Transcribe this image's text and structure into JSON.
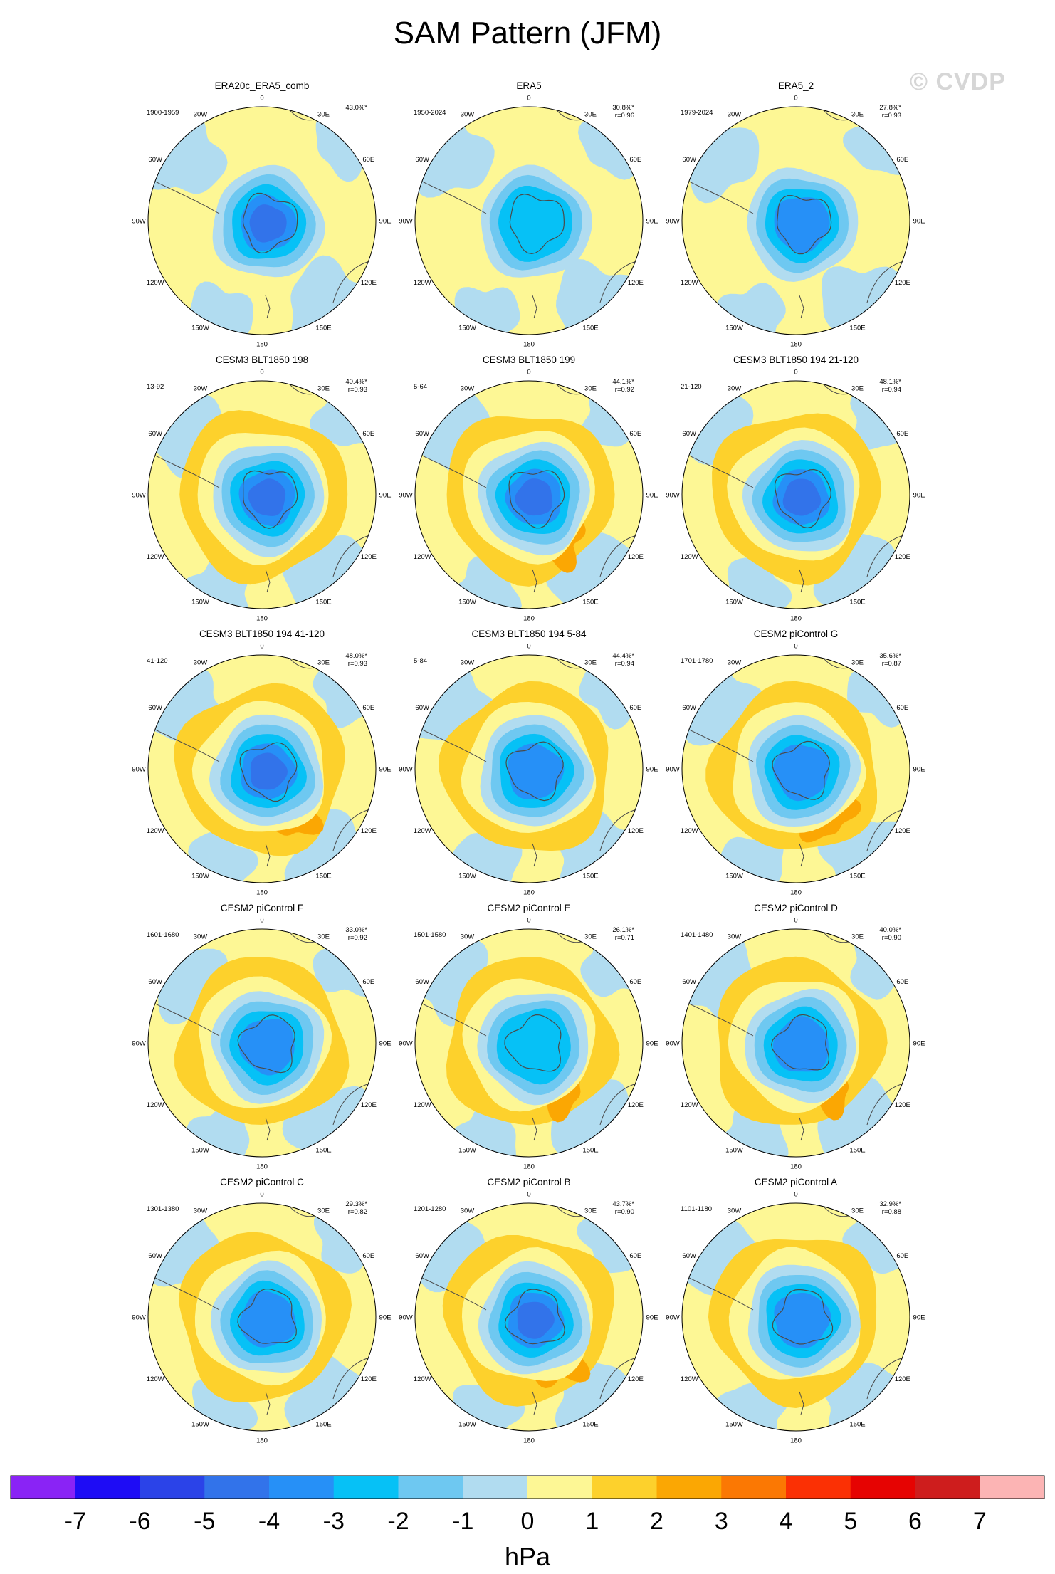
{
  "title": "SAM Pattern (JFM)",
  "watermark": "© CVDP",
  "colors": {
    "land_outline": "#4a4a4a",
    "background": "#ffffff"
  },
  "chart_data": {
    "type": "heatmap",
    "projection": "south polar stereographic",
    "variable": "SAM pattern (sea level pressure regression)",
    "units": "hPa",
    "longitude_labels": [
      "0",
      "30E",
      "60E",
      "90E",
      "120E",
      "150E",
      "180",
      "150W",
      "120W",
      "90W",
      "60W",
      "30W"
    ],
    "colorbar": {
      "tick_labels": [
        "-7",
        "-6",
        "-5",
        "-4",
        "-3",
        "-2",
        "-1",
        "0",
        "1",
        "2",
        "3",
        "4",
        "5",
        "6",
        "7"
      ],
      "unit_label": "hPa",
      "colors": [
        "#8a23f5",
        "#1e0cf5",
        "#2b43e8",
        "#3273ea",
        "#2690f7",
        "#06c1f6",
        "#6ec8f1",
        "#b1dcf0",
        "#fdf795",
        "#fdd12c",
        "#fba703",
        "#fb7803",
        "#fb3004",
        "#e60302",
        "#ce1d1d",
        "#fcb4b4"
      ]
    },
    "panels": [
      {
        "title": "ERA20c_ERA5_comb",
        "years": "1900-1959",
        "pct": "43.0%*",
        "r": "",
        "center_min": -5,
        "ring_max": 0.5,
        "ring2": 0
      },
      {
        "title": "ERA5",
        "years": "1950-2024",
        "pct": "30.8%*",
        "r": "r=0.96",
        "center_min": -3,
        "ring_max": 0.5,
        "ring2": 0
      },
      {
        "title": "ERA5_2",
        "years": "1979-2024",
        "pct": "27.8%*",
        "r": "r=0.93",
        "center_min": -4,
        "ring_max": 0.5,
        "ring2": 0
      },
      {
        "title": "CESM3 BLT1850 198",
        "years": "13-92",
        "pct": "40.4%*",
        "r": "r=0.93",
        "center_min": -5,
        "ring_max": 1.5,
        "ring2": 1
      },
      {
        "title": "CESM3 BLT1850 199",
        "years": "5-64",
        "pct": "44.1%*",
        "r": "r=0.92",
        "center_min": -5,
        "ring_max": 2.5,
        "ring2": 1
      },
      {
        "title": "CESM3 BLT1850 194 21-120",
        "years": "21-120",
        "pct": "48.1%*",
        "r": "r=0.94",
        "center_min": -5,
        "ring_max": 1.5,
        "ring2": 1
      },
      {
        "title": "CESM3 BLT1850 194 41-120",
        "years": "41-120",
        "pct": "48.0%*",
        "r": "r=0.93",
        "center_min": -5,
        "ring_max": 2.5,
        "ring2": 1
      },
      {
        "title": "CESM3 BLT1850 194 5-84",
        "years": "5-84",
        "pct": "44.4%*",
        "r": "r=0.94",
        "center_min": -4,
        "ring_max": 1.5,
        "ring2": 1
      },
      {
        "title": "CESM2 piControl G",
        "years": "1701-1780",
        "pct": "35.6%*",
        "r": "r=0.87",
        "center_min": -4,
        "ring_max": 2.5,
        "ring2": 1
      },
      {
        "title": "CESM2 piControl F",
        "years": "1601-1680",
        "pct": "33.0%*",
        "r": "r=0.92",
        "center_min": -4,
        "ring_max": 1.5,
        "ring2": 0
      },
      {
        "title": "CESM2 piControl E",
        "years": "1501-1580",
        "pct": "26.1%*",
        "r": "r=0.71",
        "center_min": -3,
        "ring_max": 2.5,
        "ring2": 0
      },
      {
        "title": "CESM2 piControl D",
        "years": "1401-1480",
        "pct": "40.0%*",
        "r": "r=0.90",
        "center_min": -4,
        "ring_max": 2.5,
        "ring2": 1
      },
      {
        "title": "CESM2 piControl C",
        "years": "1301-1380",
        "pct": "29.3%*",
        "r": "r=0.82",
        "center_min": -4,
        "ring_max": 1.5,
        "ring2": 1
      },
      {
        "title": "CESM2 piControl B",
        "years": "1201-1280",
        "pct": "43.7%*",
        "r": "r=0.90",
        "center_min": -5,
        "ring_max": 2.5,
        "ring2": 1
      },
      {
        "title": "CESM2 piControl A",
        "years": "1101-1180",
        "pct": "32.9%*",
        "r": "r=0.88",
        "center_min": -4,
        "ring_max": 1.5,
        "ring2": 1
      }
    ]
  }
}
